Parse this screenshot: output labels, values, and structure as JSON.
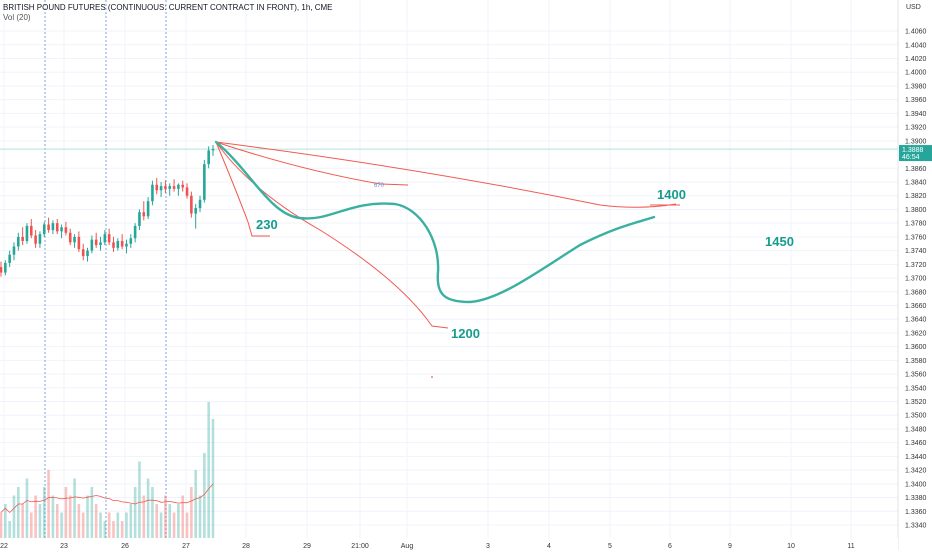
{
  "header": {
    "symbol_title": "BRITISH POUND FUTURES (CONTINUOUS: CURRENT CONTRACT IN FRONT), 1h, CME",
    "volume_indicator": "Vol (20)"
  },
  "price_axis": {
    "currency": "USD",
    "last_price": "1.3888",
    "countdown": "46:54"
  },
  "annotations": [
    "230",
    "1400",
    "1450",
    "1200",
    "670"
  ],
  "colors": {
    "bull": "#26a69a",
    "bear": "#ef5350",
    "teal_drawing": "#3ab0a2",
    "red_drawing": "#f05a50",
    "annotation_text": "#169c8e",
    "grid": "#f0f3fa",
    "price_line": "#b4e3dc",
    "session_line": "#5b8fd6",
    "last_price_box": "#26a69a"
  },
  "chart_data": {
    "type": "candlestick",
    "title": "BRITISH POUND FUTURES (CONTINUOUS: CURRENT CONTRACT IN FRONT), 1h, CME",
    "ylim": [
      1.3325,
      1.4085
    ],
    "y_ticks": [
      1.334,
      1.336,
      1.338,
      1.34,
      1.342,
      1.344,
      1.346,
      1.348,
      1.35,
      1.352,
      1.354,
      1.356,
      1.358,
      1.36,
      1.362,
      1.364,
      1.366,
      1.368,
      1.37,
      1.372,
      1.374,
      1.376,
      1.378,
      1.38,
      1.382,
      1.384,
      1.386,
      1.39,
      1.392,
      1.394,
      1.396,
      1.398,
      1.4,
      1.402,
      1.404,
      1.406
    ],
    "x_ticks": [
      "22",
      "23",
      "26",
      "27",
      "28",
      "29",
      "21:00",
      "Aug",
      "3",
      "4",
      "5",
      "6",
      "9",
      "10",
      "11"
    ],
    "last_price": 1.3888,
    "session_breaks": [
      "23",
      "26",
      "27"
    ],
    "candles": [
      [
        1.3716,
        1.3724,
        1.3702,
        1.3708
      ],
      [
        1.3708,
        1.3726,
        1.3704,
        1.3722
      ],
      [
        1.3722,
        1.374,
        1.3716,
        1.3734
      ],
      [
        1.3734,
        1.3752,
        1.3726,
        1.3746
      ],
      [
        1.3746,
        1.3766,
        1.374,
        1.376
      ],
      [
        1.376,
        1.3774,
        1.3748,
        1.3754
      ],
      [
        1.3754,
        1.378,
        1.375,
        1.3776
      ],
      [
        1.3776,
        1.3786,
        1.3758,
        1.3762
      ],
      [
        1.3762,
        1.377,
        1.3744,
        1.375
      ],
      [
        1.375,
        1.3768,
        1.3744,
        1.3764
      ],
      [
        1.3764,
        1.3782,
        1.376,
        1.3778
      ],
      [
        1.3778,
        1.3788,
        1.3766,
        1.377
      ],
      [
        1.377,
        1.3784,
        1.3764,
        1.378
      ],
      [
        1.378,
        1.3786,
        1.3764,
        1.3768
      ],
      [
        1.3768,
        1.3778,
        1.3758,
        1.3774
      ],
      [
        1.3774,
        1.3782,
        1.3762,
        1.3766
      ],
      [
        1.3766,
        1.3772,
        1.3748,
        1.3752
      ],
      [
        1.3752,
        1.3764,
        1.3744,
        1.376
      ],
      [
        1.376,
        1.3768,
        1.3738,
        1.3742
      ],
      [
        1.3742,
        1.375,
        1.3726,
        1.3732
      ],
      [
        1.3732,
        1.3744,
        1.3724,
        1.374
      ],
      [
        1.374,
        1.3762,
        1.3736,
        1.3756
      ],
      [
        1.3756,
        1.3766,
        1.3744,
        1.3748
      ],
      [
        1.3748,
        1.376,
        1.374,
        1.3752
      ],
      [
        1.3752,
        1.377,
        1.3748,
        1.3764
      ],
      [
        1.3764,
        1.3772,
        1.3748,
        1.3752
      ],
      [
        1.3752,
        1.376,
        1.3738,
        1.3744
      ],
      [
        1.3744,
        1.3758,
        1.374,
        1.3754
      ],
      [
        1.3754,
        1.3764,
        1.3742,
        1.3746
      ],
      [
        1.3746,
        1.3756,
        1.3736,
        1.375
      ],
      [
        1.375,
        1.3764,
        1.3744,
        1.3758
      ],
      [
        1.3758,
        1.378,
        1.3752,
        1.3776
      ],
      [
        1.3776,
        1.38,
        1.377,
        1.3796
      ],
      [
        1.3796,
        1.3812,
        1.3784,
        1.379
      ],
      [
        1.379,
        1.3818,
        1.3786,
        1.3812
      ],
      [
        1.3812,
        1.3842,
        1.3806,
        1.3836
      ],
      [
        1.3836,
        1.3846,
        1.3822,
        1.3828
      ],
      [
        1.3828,
        1.384,
        1.3818,
        1.3834
      ],
      [
        1.3834,
        1.3842,
        1.3824,
        1.383
      ],
      [
        1.383,
        1.3838,
        1.382,
        1.3834
      ],
      [
        1.3834,
        1.3844,
        1.3826,
        1.383
      ],
      [
        1.383,
        1.3838,
        1.382,
        1.3836
      ],
      [
        1.3836,
        1.3842,
        1.3826,
        1.3832
      ],
      [
        1.3832,
        1.3838,
        1.3816,
        1.382
      ],
      [
        1.382,
        1.3826,
        1.3788,
        1.3794
      ],
      [
        1.3794,
        1.3808,
        1.3772,
        1.3802
      ],
      [
        1.3802,
        1.382,
        1.3796,
        1.3814
      ],
      [
        1.3814,
        1.3872,
        1.381,
        1.3866
      ],
      [
        1.3866,
        1.3892,
        1.386,
        1.3886
      ],
      [
        1.3886,
        1.3894,
        1.3878,
        1.3888
      ]
    ],
    "volume": [
      3,
      4,
      2,
      5,
      6,
      4,
      7,
      3,
      5,
      4,
      6,
      8,
      5,
      4,
      3,
      6,
      5,
      7,
      4,
      3,
      5,
      6,
      4,
      3,
      2,
      3,
      2,
      3,
      2,
      3,
      4,
      6,
      9,
      5,
      7,
      6,
      4,
      3,
      5,
      4,
      3,
      4,
      5,
      3,
      6,
      8,
      5,
      10,
      16,
      14
    ]
  }
}
